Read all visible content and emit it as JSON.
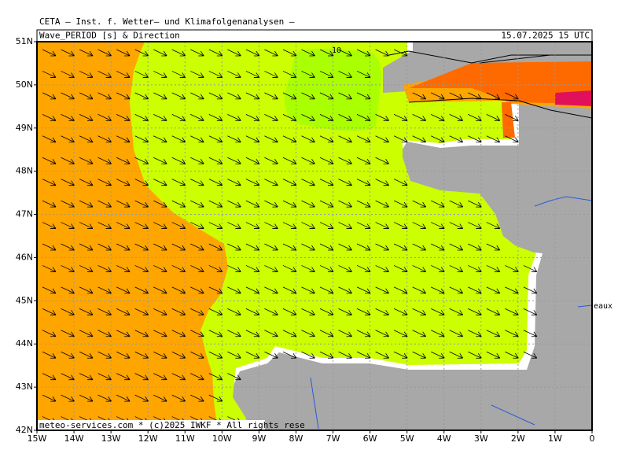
{
  "header": {
    "model": "CETA — Inst. f. Wetter— und Klimafolgenanalysen —",
    "parameter": "Wave_PERIOD [s] & Direction",
    "valid_time": "15.07.2025 15 UTC"
  },
  "map": {
    "lat_labels": [
      "51N",
      "50N",
      "49N",
      "48N",
      "47N",
      "46N",
      "45N",
      "44N",
      "43N",
      "42N"
    ],
    "lon_labels": [
      "15W",
      "14W",
      "13W",
      "12W",
      "11W",
      "10W",
      "9W",
      "8W",
      "7W",
      "6W",
      "5W",
      "4W",
      "3W",
      "2W",
      "1W",
      "0"
    ],
    "contour_label": "10",
    "place_label": "eaux",
    "credit": "meteo-services.com * (c)2025 IWKF * All rights rese"
  }
}
